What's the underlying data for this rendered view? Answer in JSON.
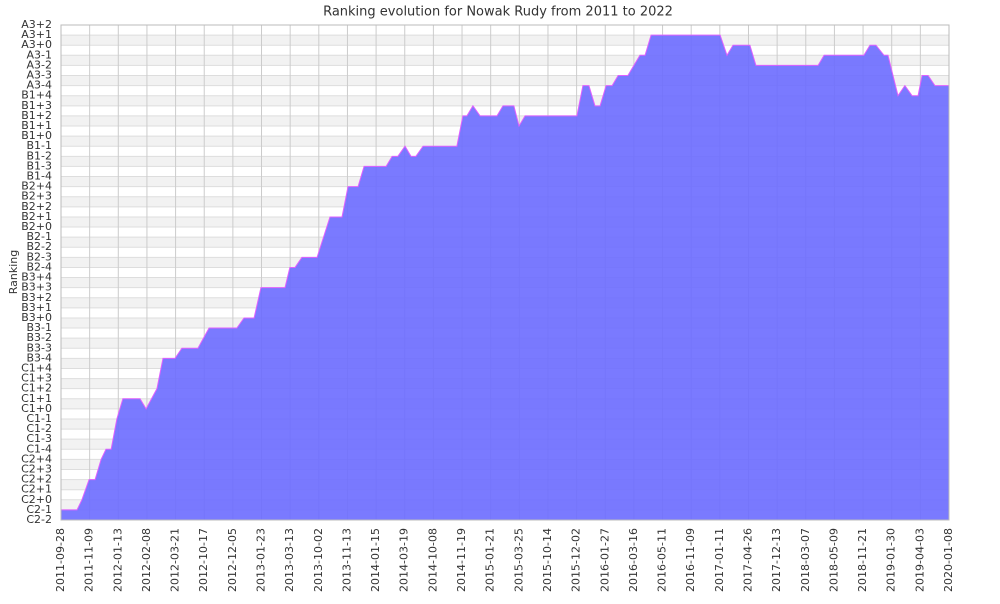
{
  "chart_data": {
    "type": "area",
    "title": "Ranking evolution for Nowak Rudy from 2011 to 2022",
    "y_label": "Ranking",
    "color": "#6c6cff",
    "line_color": "#e060ff",
    "grid": true,
    "xlim": [
      0,
      31
    ],
    "xticks": [
      {
        "value": 0,
        "label": "2011-09-28"
      },
      {
        "value": 1,
        "label": "2011-11-09"
      },
      {
        "value": 2,
        "label": "2012-01-13"
      },
      {
        "value": 3,
        "label": "2012-02-08"
      },
      {
        "value": 4,
        "label": "2012-03-21"
      },
      {
        "value": 5,
        "label": "2012-10-17"
      },
      {
        "value": 6,
        "label": "2012-12-05"
      },
      {
        "value": 7,
        "label": "2013-01-23"
      },
      {
        "value": 8,
        "label": "2013-03-13"
      },
      {
        "value": 9,
        "label": "2013-10-02"
      },
      {
        "value": 10,
        "label": "2013-11-13"
      },
      {
        "value": 11,
        "label": "2014-01-15"
      },
      {
        "value": 12,
        "label": "2014-03-19"
      },
      {
        "value": 13,
        "label": "2014-10-08"
      },
      {
        "value": 14,
        "label": "2014-11-19"
      },
      {
        "value": 15,
        "label": "2015-01-21"
      },
      {
        "value": 16,
        "label": "2015-03-25"
      },
      {
        "value": 17,
        "label": "2015-10-14"
      },
      {
        "value": 18,
        "label": "2015-12-02"
      },
      {
        "value": 19,
        "label": "2016-01-27"
      },
      {
        "value": 20,
        "label": "2016-03-16"
      },
      {
        "value": 21,
        "label": "2016-05-11"
      },
      {
        "value": 22,
        "label": "2016-11-09"
      },
      {
        "value": 23,
        "label": "2017-01-11"
      },
      {
        "value": 24,
        "label": "2017-04-26"
      },
      {
        "value": 25,
        "label": "2017-12-13"
      },
      {
        "value": 26,
        "label": "2018-03-07"
      },
      {
        "value": 27,
        "label": "2018-05-09"
      },
      {
        "value": 28,
        "label": "2018-11-21"
      },
      {
        "value": 29,
        "label": "2019-01-30"
      },
      {
        "value": 30,
        "label": "2019-04-03"
      },
      {
        "value": 31,
        "label": "2020-01-08"
      }
    ],
    "ylim": [
      0,
      49
    ],
    "yticks": [
      {
        "value": 0,
        "label": "C2-2"
      },
      {
        "value": 1,
        "label": "C2-1"
      },
      {
        "value": 2,
        "label": "C2+0"
      },
      {
        "value": 3,
        "label": "C2+1"
      },
      {
        "value": 4,
        "label": "C2+2"
      },
      {
        "value": 5,
        "label": "C2+3"
      },
      {
        "value": 6,
        "label": "C2+4"
      },
      {
        "value": 7,
        "label": "C1-4"
      },
      {
        "value": 8,
        "label": "C1-3"
      },
      {
        "value": 9,
        "label": "C1-2"
      },
      {
        "value": 10,
        "label": "C1-1"
      },
      {
        "value": 11,
        "label": "C1+0"
      },
      {
        "value": 12,
        "label": "C1+1"
      },
      {
        "value": 13,
        "label": "C1+2"
      },
      {
        "value": 14,
        "label": "C1+3"
      },
      {
        "value": 15,
        "label": "C1+4"
      },
      {
        "value": 16,
        "label": "B3-4"
      },
      {
        "value": 17,
        "label": "B3-3"
      },
      {
        "value": 18,
        "label": "B3-2"
      },
      {
        "value": 19,
        "label": "B3-1"
      },
      {
        "value": 20,
        "label": "B3+0"
      },
      {
        "value": 21,
        "label": "B3+1"
      },
      {
        "value": 22,
        "label": "B3+2"
      },
      {
        "value": 23,
        "label": "B3+3"
      },
      {
        "value": 24,
        "label": "B3+4"
      },
      {
        "value": 25,
        "label": "B2-4"
      },
      {
        "value": 26,
        "label": "B2-3"
      },
      {
        "value": 27,
        "label": "B2-2"
      },
      {
        "value": 28,
        "label": "B2-1"
      },
      {
        "value": 29,
        "label": "B2+0"
      },
      {
        "value": 30,
        "label": "B2+1"
      },
      {
        "value": 31,
        "label": "B2+2"
      },
      {
        "value": 32,
        "label": "B2+3"
      },
      {
        "value": 33,
        "label": "B2+4"
      },
      {
        "value": 34,
        "label": "B1-4"
      },
      {
        "value": 35,
        "label": "B1-3"
      },
      {
        "value": 36,
        "label": "B1-2"
      },
      {
        "value": 37,
        "label": "B1-1"
      },
      {
        "value": 38,
        "label": "B1+0"
      },
      {
        "value": 39,
        "label": "B1+1"
      },
      {
        "value": 40,
        "label": "B1+2"
      },
      {
        "value": 41,
        "label": "B1+3"
      },
      {
        "value": 42,
        "label": "B1+4"
      },
      {
        "value": 43,
        "label": "A3-4"
      },
      {
        "value": 44,
        "label": "A3-3"
      },
      {
        "value": 45,
        "label": "A3-2"
      },
      {
        "value": 46,
        "label": "A3-1"
      },
      {
        "value": 47,
        "label": "A3+0"
      },
      {
        "value": 48,
        "label": "A3+1"
      },
      {
        "value": 49,
        "label": "A3+2"
      }
    ],
    "x": [
      0,
      0.56,
      0.73,
      0.98,
      1.19,
      1.4,
      1.57,
      1.75,
      1.95,
      2.16,
      2.76,
      2.97,
      3.35,
      3.56,
      3.98,
      4.22,
      4.78,
      5.17,
      6.14,
      6.39,
      6.74,
      6.98,
      7.82,
      7.99,
      8.17,
      8.41,
      8.94,
      9.39,
      9.81,
      10.02,
      10.37,
      10.58,
      11.35,
      11.56,
      11.76,
      12.01,
      12.22,
      12.39,
      12.64,
      13.82,
      14.03,
      14.17,
      14.38,
      14.63,
      15.22,
      15.43,
      15.81,
      15.99,
      16.2,
      18.01,
      18.22,
      18.43,
      18.64,
      18.82,
      19.03,
      19.24,
      19.45,
      19.79,
      20.21,
      20.39,
      20.6,
      23.01,
      23.25,
      23.46,
      24.05,
      24.26,
      26.43,
      26.64,
      28.03,
      28.24,
      28.45,
      28.73,
      28.87,
      29.22,
      29.46,
      29.71,
      29.92,
      30.06,
      30.27,
      30.51,
      31
    ],
    "values": [
      1,
      1,
      2,
      4,
      4,
      6,
      7,
      7,
      10,
      12,
      12,
      11,
      13,
      16,
      16,
      17,
      17,
      19,
      19,
      20,
      20,
      23,
      23,
      25,
      25,
      26,
      26,
      30,
      30,
      33,
      33,
      35,
      35,
      36,
      36,
      37,
      36,
      36,
      37,
      37,
      40,
      40,
      41,
      40,
      40,
      41,
      41,
      39,
      40,
      40,
      43,
      43,
      41,
      41,
      43,
      43,
      44,
      44,
      46,
      46,
      48,
      48,
      46,
      47,
      47,
      45,
      45,
      46,
      46,
      47,
      47,
      46,
      46,
      42,
      43,
      42,
      42,
      44,
      44,
      43,
      43
    ]
  }
}
